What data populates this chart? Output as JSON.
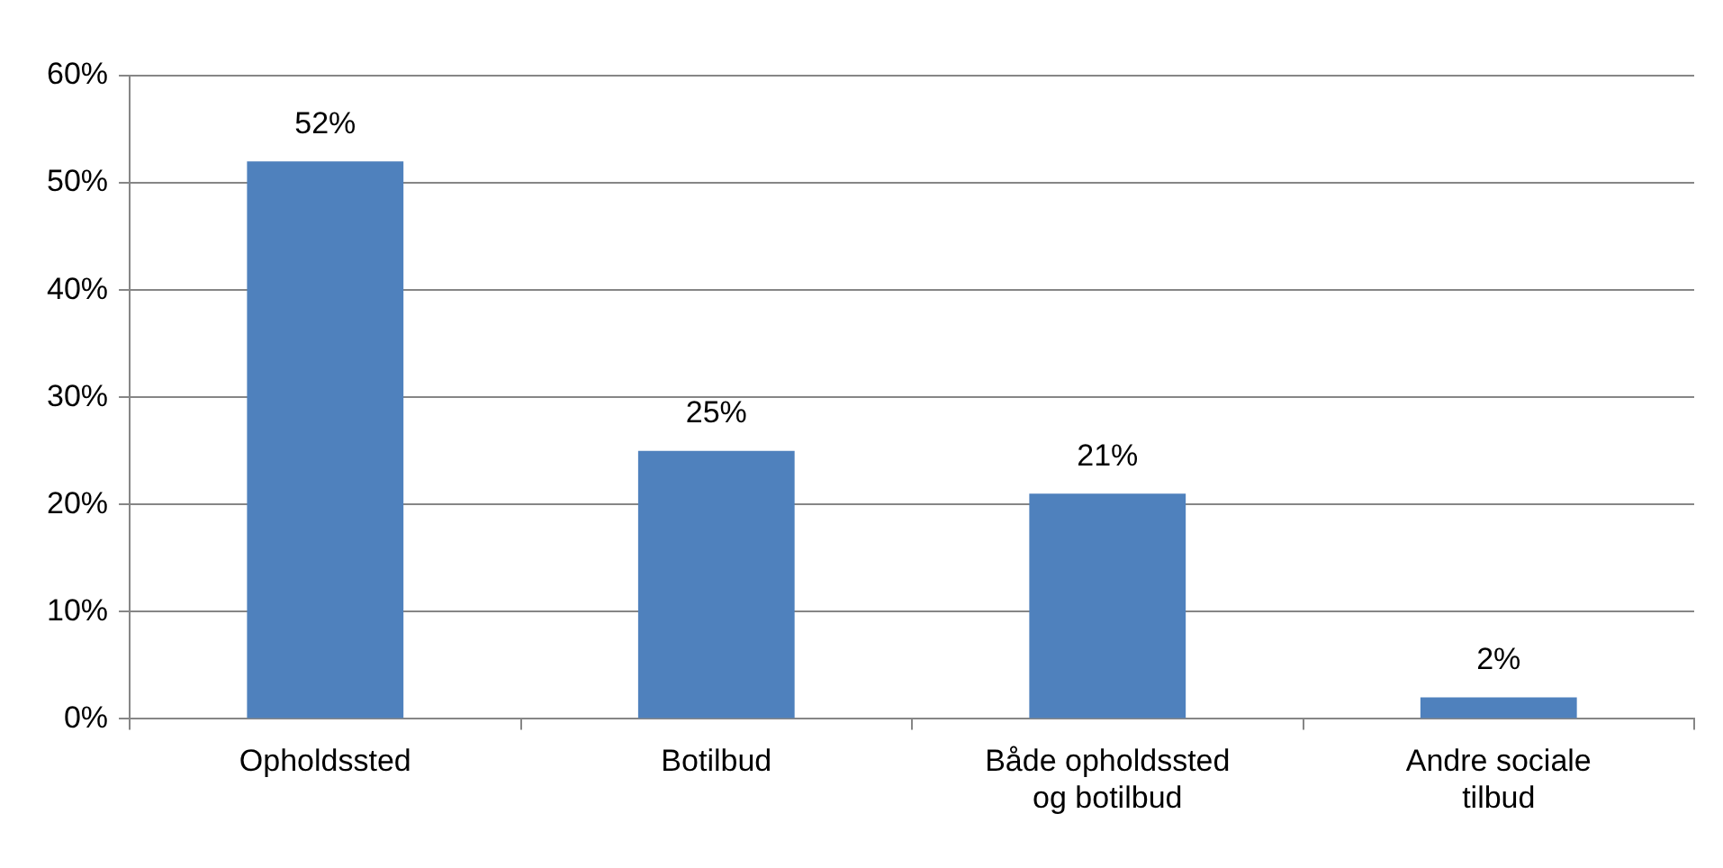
{
  "chart_data": {
    "type": "bar",
    "categories": [
      "Opholdssted",
      "Botilbud",
      "Både opholdssted og botilbud",
      "Andre sociale tilbud"
    ],
    "values": [
      52,
      25,
      21,
      2
    ],
    "color": "#4f81bd",
    "value_labels": [
      "52%",
      "25%",
      "21%",
      "2%"
    ],
    "ylim": [
      0,
      60
    ],
    "yticks": [
      {
        "value": 0,
        "label": "0%"
      },
      {
        "value": 10,
        "label": "10%"
      },
      {
        "value": 20,
        "label": "20%"
      },
      {
        "value": 30,
        "label": "30%"
      },
      {
        "value": 40,
        "label": "40%"
      },
      {
        "value": 50,
        "label": "50%"
      },
      {
        "value": 60,
        "label": "60%"
      }
    ],
    "grid": "y",
    "legend": false
  }
}
